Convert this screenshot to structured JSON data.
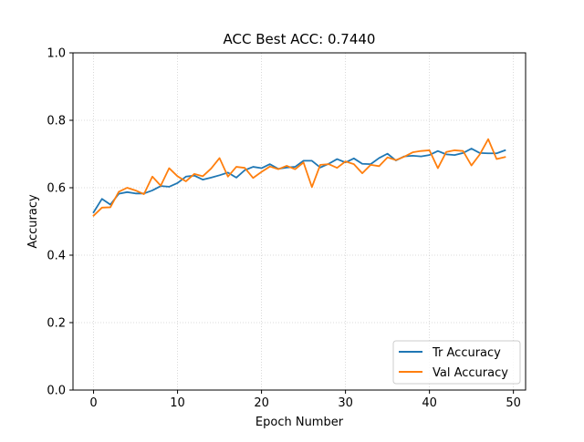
{
  "chart_data": {
    "type": "line",
    "title": "ACC Best ACC: 0.7440",
    "xlabel": "Epoch Number",
    "ylabel": "Accuracy",
    "xlim": [
      -2.45,
      51.45
    ],
    "ylim": [
      0.0,
      1.0
    ],
    "xticks": [
      0,
      10,
      20,
      30,
      40,
      50
    ],
    "xtick_labels": [
      "0",
      "10",
      "20",
      "30",
      "40",
      "50"
    ],
    "yticks": [
      0.0,
      0.2,
      0.4,
      0.6,
      0.8,
      1.0
    ],
    "ytick_labels": [
      "0.0",
      "0.2",
      "0.4",
      "0.6",
      "0.8",
      "1.0"
    ],
    "grid": true,
    "legend_position": "lower-right",
    "x": [
      0,
      1,
      2,
      3,
      4,
      5,
      6,
      7,
      8,
      9,
      10,
      11,
      12,
      13,
      14,
      15,
      16,
      17,
      18,
      19,
      20,
      21,
      22,
      23,
      24,
      25,
      26,
      27,
      28,
      29,
      30,
      31,
      32,
      33,
      34,
      35,
      36,
      37,
      38,
      39,
      40,
      41,
      42,
      43,
      44,
      45,
      46,
      47,
      48,
      49
    ],
    "series": [
      {
        "name": "Tr Accuracy",
        "color": "#1f77b4",
        "values": [
          0.527,
          0.567,
          0.55,
          0.582,
          0.587,
          0.583,
          0.583,
          0.592,
          0.605,
          0.603,
          0.614,
          0.633,
          0.636,
          0.624,
          0.63,
          0.637,
          0.645,
          0.63,
          0.652,
          0.662,
          0.658,
          0.67,
          0.656,
          0.66,
          0.662,
          0.68,
          0.68,
          0.66,
          0.671,
          0.685,
          0.675,
          0.687,
          0.671,
          0.67,
          0.688,
          0.701,
          0.681,
          0.693,
          0.695,
          0.693,
          0.697,
          0.709,
          0.699,
          0.697,
          0.703,
          0.716,
          0.703,
          0.702,
          0.702,
          0.711
        ]
      },
      {
        "name": "Val Accuracy",
        "color": "#ff7f0e",
        "values": [
          0.517,
          0.541,
          0.542,
          0.588,
          0.6,
          0.592,
          0.581,
          0.633,
          0.606,
          0.658,
          0.634,
          0.619,
          0.641,
          0.634,
          0.657,
          0.688,
          0.633,
          0.662,
          0.659,
          0.629,
          0.647,
          0.663,
          0.655,
          0.665,
          0.655,
          0.675,
          0.602,
          0.668,
          0.67,
          0.659,
          0.678,
          0.67,
          0.643,
          0.668,
          0.664,
          0.69,
          0.682,
          0.692,
          0.705,
          0.709,
          0.711,
          0.658,
          0.706,
          0.711,
          0.709,
          0.666,
          0.699,
          0.744,
          0.685,
          0.691
        ]
      }
    ]
  }
}
